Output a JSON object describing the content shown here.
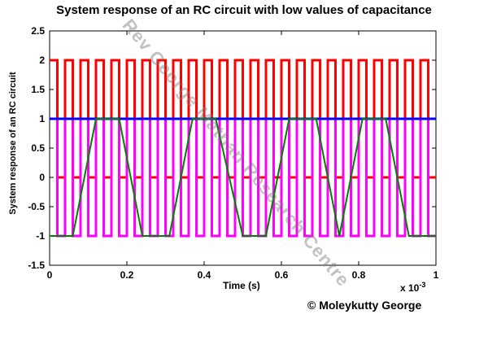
{
  "chart_data": {
    "type": "line",
    "title": "System response of an RC circuit with low values of capacitance",
    "xlabel": "Time (s)",
    "x_multiplier": "x 10",
    "x_multiplier_exp": "-3",
    "ylabel": "System response of an RC circuit",
    "xlim": [
      0,
      1
    ],
    "ylim": [
      -1.5,
      2.5
    ],
    "x_ticks": [
      "0",
      "0.2",
      "0.4",
      "0.6",
      "0.8",
      "1"
    ],
    "y_ticks": [
      "2.5",
      "2",
      "1.5",
      "1",
      "0.5",
      "0",
      "-0.5",
      "-1",
      "-1.5"
    ],
    "grid": false,
    "series": [
      {
        "color": "#ff0000",
        "style": "square wave 0 to 2",
        "period": 0.04,
        "x": [
          0,
          1
        ],
        "low": 0,
        "high": 2
      },
      {
        "color": "#ff00ff",
        "style": "square wave -1 to 1",
        "period": 0.04,
        "x": [
          0,
          1
        ],
        "low": -1,
        "high": 1
      },
      {
        "color": "#0000ff",
        "style": "constant",
        "x": [
          0,
          1
        ],
        "y": [
          1,
          1
        ]
      },
      {
        "color": "#008000",
        "style": "ramp",
        "x": [
          0,
          0.06,
          0.12,
          0.18,
          0.24,
          0.31,
          0.37,
          0.43,
          0.5,
          0.56,
          0.62,
          0.69,
          0.75,
          0.81,
          0.87,
          0.93,
          1.0
        ],
        "y": [
          -1,
          -1,
          1,
          1,
          -1,
          -1,
          1,
          1,
          -1,
          -1,
          1,
          1,
          -1,
          1,
          1,
          -1,
          -1
        ]
      }
    ]
  },
  "watermark": "Rev George Mathan Research Centre",
  "copyright": "© Moleykutty George"
}
